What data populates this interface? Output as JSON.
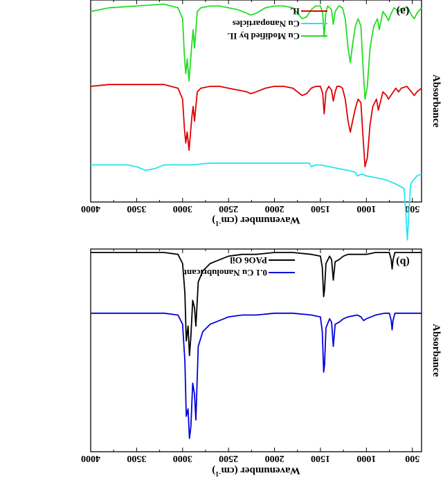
{
  "chart_data": [
    {
      "panel": "(a)",
      "type": "line",
      "xlabel": "Wavenumber (cm",
      "xlabel_sup": "-1",
      "ylabel": "Absorbance",
      "xlim": [
        4000,
        400
      ],
      "x_reversed": true,
      "y_ticks_shown": false,
      "ticks": [
        "4000",
        "3500",
        "3000",
        "2500",
        "2000",
        "1500",
        "1000",
        "500"
      ],
      "legend_position": "top-right",
      "series": [
        {
          "name": "IL",
          "color": "#dd0000",
          "offset": 0.44,
          "points": [
            [
              400,
              0.02
            ],
            [
              450,
              0.04
            ],
            [
              480,
              0.06
            ],
            [
              510,
              0.04
            ],
            [
              560,
              0.01
            ],
            [
              620,
              0.02
            ],
            [
              650,
              0.04
            ],
            [
              680,
              0.02
            ],
            [
              720,
              0.05
            ],
            [
              760,
              0.08
            ],
            [
              780,
              0.06
            ],
            [
              820,
              0.04
            ],
            [
              870,
              0.14
            ],
            [
              890,
              0.08
            ],
            [
              930,
              0.12
            ],
            [
              960,
              0.22
            ],
            [
              990,
              0.4
            ],
            [
              1015,
              0.45
            ],
            [
              1035,
              0.3
            ],
            [
              1060,
              0.1
            ],
            [
              1090,
              0.08
            ],
            [
              1120,
              0.13
            ],
            [
              1150,
              0.2
            ],
            [
              1175,
              0.26
            ],
            [
              1200,
              0.2
            ],
            [
              1230,
              0.08
            ],
            [
              1260,
              0.02
            ],
            [
              1290,
              0.01
            ],
            [
              1320,
              0.01
            ],
            [
              1340,
              0.04
            ],
            [
              1360,
              0.09
            ],
            [
              1380,
              0.03
            ],
            [
              1410,
              0.01
            ],
            [
              1440,
              0.04
            ],
            [
              1460,
              0.16
            ],
            [
              1475,
              0.05
            ],
            [
              1500,
              0.01
            ],
            [
              1550,
              0.01
            ],
            [
              1600,
              0.02
            ],
            [
              1650,
              0.05
            ],
            [
              1700,
              0.06
            ],
            [
              1750,
              0.04
            ],
            [
              1800,
              0.02
            ],
            [
              1900,
              0.01
            ],
            [
              2000,
              0.01
            ],
            [
              2100,
              0.02
            ],
            [
              2200,
              0.04
            ],
            [
              2260,
              0.05
            ],
            [
              2300,
              0.04
            ],
            [
              2400,
              0.03
            ],
            [
              2500,
              0.02
            ],
            [
              2600,
              0.01
            ],
            [
              2700,
              0.01
            ],
            [
              2800,
              0.02
            ],
            [
              2840,
              0.04
            ],
            [
              2870,
              0.2
            ],
            [
              2885,
              0.12
            ],
            [
              2900,
              0.18
            ],
            [
              2930,
              0.36
            ],
            [
              2950,
              0.26
            ],
            [
              2965,
              0.32
            ],
            [
              2980,
              0.24
            ],
            [
              3000,
              0.08
            ],
            [
              3050,
              0.02
            ],
            [
              3200,
              0.0
            ],
            [
              3500,
              0.0
            ],
            [
              3800,
              0.0
            ],
            [
              4000,
              0.01
            ]
          ]
        },
        {
          "name": "Cu Nanoparticles",
          "color": "#22e5f0",
          "offset": 0.87,
          "points": [
            [
              400,
              0.06
            ],
            [
              450,
              0.07
            ],
            [
              500,
              0.1
            ],
            [
              520,
              0.12
            ],
            [
              540,
              0.3
            ],
            [
              555,
              0.42
            ],
            [
              570,
              0.28
            ],
            [
              590,
              0.14
            ],
            [
              620,
              0.13
            ],
            [
              700,
              0.11
            ],
            [
              800,
              0.09
            ],
            [
              900,
              0.08
            ],
            [
              1000,
              0.07
            ],
            [
              1050,
              0.06
            ],
            [
              1100,
              0.07
            ],
            [
              1120,
              0.05
            ],
            [
              1200,
              0.04
            ],
            [
              1300,
              0.03
            ],
            [
              1400,
              0.02
            ],
            [
              1500,
              0.01
            ],
            [
              1550,
              0.01
            ],
            [
              1600,
              0.02
            ],
            [
              1620,
              0.0
            ],
            [
              1700,
              0.0
            ],
            [
              1800,
              0.0
            ],
            [
              1900,
              0.0
            ],
            [
              2100,
              0.0
            ],
            [
              2300,
              0.0
            ],
            [
              2500,
              0.0
            ],
            [
              2700,
              0.0
            ],
            [
              2900,
              0.01
            ],
            [
              3000,
              0.01
            ],
            [
              3200,
              0.01
            ],
            [
              3300,
              0.03
            ],
            [
              3400,
              0.04
            ],
            [
              3500,
              0.02
            ],
            [
              3600,
              0.01
            ],
            [
              3800,
              0.01
            ],
            [
              4000,
              0.01
            ]
          ]
        },
        {
          "name": "Cu Modified by IL",
          "color": "#22dd22",
          "offset": 0.0,
          "points": [
            [
              400,
              0.02
            ],
            [
              450,
              0.05
            ],
            [
              480,
              0.08
            ],
            [
              510,
              0.06
            ],
            [
              550,
              0.02
            ],
            [
              600,
              0.02
            ],
            [
              650,
              0.04
            ],
            [
              700,
              0.02
            ],
            [
              730,
              0.05
            ],
            [
              760,
              0.09
            ],
            [
              780,
              0.07
            ],
            [
              820,
              0.04
            ],
            [
              860,
              0.14
            ],
            [
              880,
              0.08
            ],
            [
              920,
              0.12
            ],
            [
              960,
              0.24
            ],
            [
              990,
              0.45
            ],
            [
              1015,
              0.52
            ],
            [
              1035,
              0.36
            ],
            [
              1060,
              0.12
            ],
            [
              1090,
              0.08
            ],
            [
              1120,
              0.12
            ],
            [
              1150,
              0.22
            ],
            [
              1175,
              0.32
            ],
            [
              1200,
              0.24
            ],
            [
              1230,
              0.08
            ],
            [
              1260,
              0.02
            ],
            [
              1300,
              0.01
            ],
            [
              1340,
              0.04
            ],
            [
              1360,
              0.11
            ],
            [
              1380,
              0.03
            ],
            [
              1420,
              0.01
            ],
            [
              1440,
              0.04
            ],
            [
              1460,
              0.18
            ],
            [
              1475,
              0.05
            ],
            [
              1500,
              0.01
            ],
            [
              1550,
              0.01
            ],
            [
              1600,
              0.03
            ],
            [
              1650,
              0.07
            ],
            [
              1700,
              0.08
            ],
            [
              1750,
              0.05
            ],
            [
              1800,
              0.02
            ],
            [
              1900,
              0.01
            ],
            [
              2000,
              0.01
            ],
            [
              2100,
              0.02
            ],
            [
              2200,
              0.05
            ],
            [
              2260,
              0.06
            ],
            [
              2300,
              0.05
            ],
            [
              2400,
              0.03
            ],
            [
              2500,
              0.02
            ],
            [
              2600,
              0.01
            ],
            [
              2700,
              0.01
            ],
            [
              2800,
              0.02
            ],
            [
              2840,
              0.04
            ],
            [
              2870,
              0.24
            ],
            [
              2885,
              0.14
            ],
            [
              2900,
              0.22
            ],
            [
              2930,
              0.42
            ],
            [
              2950,
              0.3
            ],
            [
              2965,
              0.38
            ],
            [
              2980,
              0.28
            ],
            [
              3000,
              0.08
            ],
            [
              3050,
              0.02
            ],
            [
              3200,
              0.0
            ],
            [
              3500,
              0.01
            ],
            [
              3800,
              0.02
            ],
            [
              4000,
              0.04
            ]
          ]
        }
      ]
    },
    {
      "panel": "(b)",
      "type": "line",
      "xlabel": "Wavenumber (cm",
      "xlabel_sup": "-1",
      "ylabel": "Absorbance",
      "xlim": [
        4000,
        400
      ],
      "x_reversed": true,
      "y_ticks_shown": false,
      "ticks": [
        "4000",
        "3500",
        "3000",
        "2500",
        "2000",
        "1500",
        "1000",
        "500"
      ],
      "legend_position": "top-right",
      "series": [
        {
          "name": "PAO6 Oil",
          "color": "#000000",
          "offset": 0.0,
          "points": [
            [
              400,
              0.0
            ],
            [
              500,
              0.0
            ],
            [
              600,
              0.0
            ],
            [
              690,
              0.0
            ],
            [
              710,
              0.04
            ],
            [
              720,
              0.09
            ],
            [
              730,
              0.04
            ],
            [
              750,
              0.0
            ],
            [
              800,
              0.0
            ],
            [
              900,
              0.0
            ],
            [
              1000,
              0.01
            ],
            [
              1100,
              0.01
            ],
            [
              1200,
              0.01
            ],
            [
              1250,
              0.02
            ],
            [
              1300,
              0.04
            ],
            [
              1340,
              0.05
            ],
            [
              1360,
              0.15
            ],
            [
              1378,
              0.04
            ],
            [
              1400,
              0.02
            ],
            [
              1440,
              0.06
            ],
            [
              1455,
              0.2
            ],
            [
              1465,
              0.24
            ],
            [
              1480,
              0.08
            ],
            [
              1500,
              0.02
            ],
            [
              1600,
              0.01
            ],
            [
              1800,
              0.0
            ],
            [
              2000,
              0.0
            ],
            [
              2200,
              0.01
            ],
            [
              2350,
              0.01
            ],
            [
              2500,
              0.02
            ],
            [
              2600,
              0.04
            ],
            [
              2700,
              0.06
            ],
            [
              2780,
              0.1
            ],
            [
              2830,
              0.16
            ],
            [
              2855,
              0.4
            ],
            [
              2870,
              0.3
            ],
            [
              2890,
              0.26
            ],
            [
              2910,
              0.46
            ],
            [
              2925,
              0.56
            ],
            [
              2940,
              0.4
            ],
            [
              2960,
              0.48
            ],
            [
              2975,
              0.22
            ],
            [
              3000,
              0.06
            ],
            [
              3050,
              0.01
            ],
            [
              3200,
              0.0
            ],
            [
              3500,
              0.0
            ],
            [
              4000,
              0.0
            ]
          ]
        },
        {
          "name": "0.1 Cu Nanolubricant",
          "color": "#0000dd",
          "offset": 0.33,
          "points": [
            [
              400,
              0.0
            ],
            [
              500,
              0.0
            ],
            [
              600,
              0.0
            ],
            [
              690,
              0.0
            ],
            [
              710,
              0.04
            ],
            [
              720,
              0.09
            ],
            [
              730,
              0.04
            ],
            [
              750,
              0.0
            ],
            [
              800,
              0.0
            ],
            [
              900,
              0.01
            ],
            [
              1000,
              0.03
            ],
            [
              1030,
              0.04
            ],
            [
              1060,
              0.02
            ],
            [
              1100,
              0.01
            ],
            [
              1200,
              0.02
            ],
            [
              1250,
              0.03
            ],
            [
              1300,
              0.05
            ],
            [
              1340,
              0.06
            ],
            [
              1360,
              0.18
            ],
            [
              1378,
              0.05
            ],
            [
              1400,
              0.03
            ],
            [
              1440,
              0.08
            ],
            [
              1455,
              0.28
            ],
            [
              1465,
              0.32
            ],
            [
              1480,
              0.1
            ],
            [
              1500,
              0.02
            ],
            [
              1600,
              0.01
            ],
            [
              1800,
              0.0
            ],
            [
              2000,
              0.0
            ],
            [
              2200,
              0.01
            ],
            [
              2350,
              0.01
            ],
            [
              2500,
              0.02
            ],
            [
              2600,
              0.04
            ],
            [
              2700,
              0.06
            ],
            [
              2780,
              0.1
            ],
            [
              2830,
              0.18
            ],
            [
              2855,
              0.58
            ],
            [
              2870,
              0.44
            ],
            [
              2890,
              0.38
            ],
            [
              2910,
              0.62
            ],
            [
              2925,
              0.68
            ],
            [
              2940,
              0.52
            ],
            [
              2960,
              0.56
            ],
            [
              2975,
              0.26
            ],
            [
              3000,
              0.06
            ],
            [
              3050,
              0.01
            ],
            [
              3200,
              0.0
            ],
            [
              3500,
              0.0
            ],
            [
              4000,
              0.0
            ]
          ]
        }
      ]
    }
  ]
}
